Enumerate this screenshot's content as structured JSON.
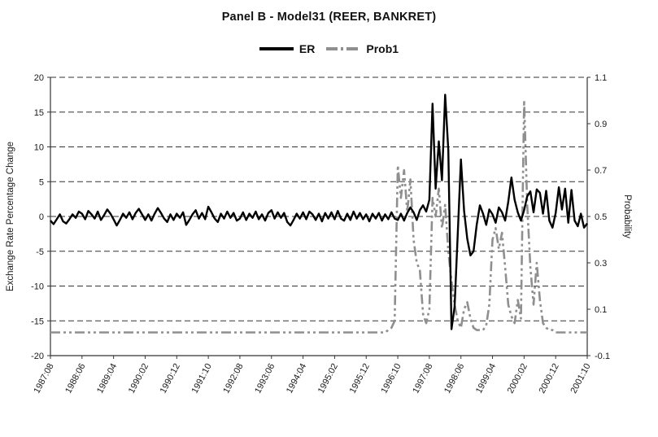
{
  "title": "Panel B - Model31 (REER, BANKRET)",
  "legend": [
    {
      "label": "ER"
    },
    {
      "label": "Prob1"
    }
  ],
  "chart_data": {
    "type": "line",
    "title": "Panel B - Model31 (REER, BANKRET)",
    "legend_position": "top",
    "grid": "horizontal-dashed",
    "x_unit": "year:month",
    "x_tick_interval": 10,
    "x_tick_labels": [
      "1987:08",
      "1988:06",
      "1989:04",
      "1990:02",
      "1990:12",
      "1991:10",
      "1992:08",
      "1993:06",
      "1994:04",
      "1995:02",
      "1995:12",
      "1996:10",
      "1997:08",
      "1998:06",
      "1999:04",
      "2000:02",
      "2000:12",
      "2001:10"
    ],
    "left_axis": {
      "label": "Exchange Rate Percentage Change",
      "min": -20,
      "max": 20,
      "ticks": [
        "-20",
        "-15",
        "-10",
        "-5",
        "0",
        "5",
        "10",
        "15",
        "20"
      ]
    },
    "right_axis": {
      "label": "Probability",
      "min": -0.1,
      "max": 1.1,
      "ticks": [
        "-0.1",
        "0.1",
        "0.3",
        "0.5",
        "0.7",
        "0.9",
        "1.1"
      ]
    },
    "colors": {
      "er": "#000000",
      "prob1": "#8f8f8f"
    },
    "series": [
      {
        "name": "ER",
        "axis": "left",
        "color": "#000000",
        "style": "solid",
        "values": [
          -0.6,
          -1.1,
          -0.4,
          0.3,
          -0.7,
          -1.0,
          -0.4,
          0.3,
          -0.2,
          0.7,
          0.4,
          -0.4,
          0.8,
          0.3,
          -0.3,
          0.7,
          -0.5,
          0.2,
          1.0,
          0.4,
          -0.4,
          -1.3,
          -0.5,
          0.4,
          -0.2,
          0.6,
          -0.4,
          0.5,
          1.1,
          0.3,
          -0.5,
          0.3,
          -0.6,
          0.4,
          1.2,
          0.5,
          -0.3,
          -0.8,
          0.3,
          -0.5,
          0.4,
          -0.2,
          0.6,
          -1.2,
          -0.5,
          0.3,
          0.9,
          -0.3,
          0.5,
          -0.4,
          1.4,
          0.6,
          -0.3,
          -0.8,
          0.4,
          -0.3,
          0.7,
          -0.2,
          0.5,
          -0.6,
          -0.3,
          0.6,
          -0.5,
          0.4,
          -0.2,
          0.7,
          -0.4,
          0.3,
          -0.6,
          0.5,
          0.9,
          -0.3,
          0.6,
          -0.2,
          0.5,
          -0.8,
          -1.3,
          -0.5,
          0.4,
          -0.3,
          0.6,
          -0.4,
          0.7,
          0.3,
          -0.5,
          0.4,
          -0.7,
          0.5,
          -0.3,
          0.6,
          -0.4,
          0.8,
          -0.3,
          -0.6,
          0.4,
          -0.5,
          0.7,
          -0.3,
          0.5,
          -0.4,
          0.3,
          -0.7,
          0.4,
          -0.3,
          0.5,
          -0.6,
          0.3,
          -0.4,
          0.6,
          -0.3,
          -0.5,
          0.4,
          -0.6,
          0.5,
          1.3,
          0.6,
          -0.5,
          0.9,
          1.6,
          0.7,
          2.4,
          16.2,
          4.0,
          10.8,
          5.2,
          17.5,
          9.5,
          -16.2,
          -13.0,
          -2.5,
          8.2,
          0.8,
          -3.2,
          -5.6,
          -5.0,
          -1.2,
          1.6,
          0.4,
          -1.2,
          1.0,
          0.3,
          -0.9,
          1.3,
          0.6,
          -0.6,
          2.1,
          5.6,
          2.4,
          0.6,
          -0.6,
          0.9,
          2.9,
          3.6,
          0.6,
          3.9,
          3.4,
          0.4,
          3.7,
          -0.6,
          -1.6,
          0.5,
          4.2,
          1.0,
          4.0,
          -0.9,
          3.8,
          -0.6,
          -1.4,
          0.4,
          -1.6,
          -1.0
        ]
      },
      {
        "name": "Prob1",
        "axis": "right",
        "color": "#8f8f8f",
        "style": "dash-dot-dot",
        "values": [
          0,
          0,
          0,
          0,
          0,
          0,
          0,
          0,
          0,
          0,
          0,
          0,
          0,
          0,
          0,
          0,
          0,
          0,
          0,
          0,
          0,
          0,
          0,
          0,
          0,
          0,
          0,
          0,
          0,
          0,
          0,
          0,
          0,
          0,
          0,
          0,
          0,
          0,
          0,
          0,
          0,
          0,
          0,
          0,
          0,
          0,
          0,
          0,
          0,
          0,
          0,
          0,
          0,
          0,
          0,
          0,
          0,
          0,
          0,
          0,
          0,
          0,
          0,
          0,
          0,
          0,
          0,
          0,
          0,
          0,
          0,
          0,
          0,
          0,
          0,
          0,
          0,
          0,
          0,
          0,
          0,
          0,
          0,
          0,
          0,
          0,
          0,
          0,
          0,
          0,
          0,
          0,
          0,
          0,
          0,
          0,
          0,
          0,
          0,
          0,
          0,
          0,
          0,
          0,
          0,
          0.0,
          0.0,
          0.01,
          0.02,
          0.05,
          0.72,
          0.58,
          0.7,
          0.52,
          0.66,
          0.4,
          0.3,
          0.27,
          0.08,
          0.04,
          0.1,
          0.58,
          0.5,
          0.62,
          0.45,
          0.55,
          0.35,
          0.22,
          0.12,
          0.05,
          0.02,
          0.1,
          0.13,
          0.06,
          0.02,
          0.01,
          0.01,
          0.01,
          0.03,
          0.12,
          0.4,
          0.45,
          0.36,
          0.43,
          0.28,
          0.12,
          0.07,
          0.04,
          0.14,
          0.06,
          1.0,
          0.55,
          0.28,
          0.12,
          0.3,
          0.14,
          0.04,
          0.02,
          0.01,
          0.01,
          0,
          0,
          0,
          0,
          0,
          0,
          0,
          0,
          0,
          0,
          0
        ]
      }
    ]
  }
}
